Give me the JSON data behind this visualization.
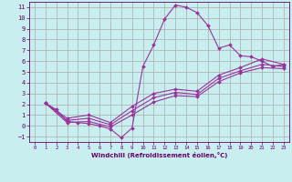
{
  "xlabel": "Windchill (Refroidissement éolien,°C)",
  "bg_color": "#c8eef0",
  "line_color": "#993399",
  "grid_color": "#aaaaaa",
  "xlim": [
    -0.5,
    23.5
  ],
  "ylim": [
    -1.5,
    11.5
  ],
  "xticks": [
    0,
    1,
    2,
    3,
    4,
    5,
    6,
    7,
    8,
    9,
    10,
    11,
    12,
    13,
    14,
    15,
    16,
    17,
    18,
    19,
    20,
    21,
    22,
    23
  ],
  "yticks": [
    -1,
    0,
    1,
    2,
    3,
    4,
    5,
    6,
    7,
    8,
    9,
    10,
    11
  ],
  "curve1_x": [
    1,
    2,
    3,
    4,
    5,
    6,
    7,
    8,
    9,
    10,
    11,
    12,
    13,
    14,
    15,
    16,
    17,
    18,
    19,
    20,
    21,
    22,
    23
  ],
  "curve1_y": [
    2.1,
    1.5,
    0.4,
    0.3,
    0.2,
    0.0,
    -0.3,
    -1.1,
    -0.2,
    5.5,
    7.5,
    9.9,
    11.2,
    11.0,
    10.5,
    9.3,
    7.2,
    7.5,
    6.5,
    6.4,
    6.0,
    5.5,
    5.7
  ],
  "curve2_x": [
    1,
    3,
    5,
    7,
    9,
    11,
    13,
    15,
    17,
    19,
    21,
    23
  ],
  "curve2_y": [
    2.1,
    0.7,
    1.0,
    0.3,
    1.8,
    3.0,
    3.4,
    3.2,
    4.7,
    5.4,
    6.2,
    5.7
  ],
  "curve3_x": [
    1,
    3,
    5,
    7,
    9,
    11,
    13,
    15,
    17,
    19,
    21,
    23
  ],
  "curve3_y": [
    2.1,
    0.5,
    0.7,
    0.1,
    1.4,
    2.6,
    3.1,
    2.9,
    4.4,
    5.1,
    5.7,
    5.5
  ],
  "curve4_x": [
    1,
    3,
    5,
    7,
    9,
    11,
    13,
    15,
    17,
    19,
    21,
    23
  ],
  "curve4_y": [
    2.1,
    0.3,
    0.4,
    -0.1,
    1.0,
    2.2,
    2.8,
    2.7,
    4.1,
    4.9,
    5.4,
    5.3
  ]
}
